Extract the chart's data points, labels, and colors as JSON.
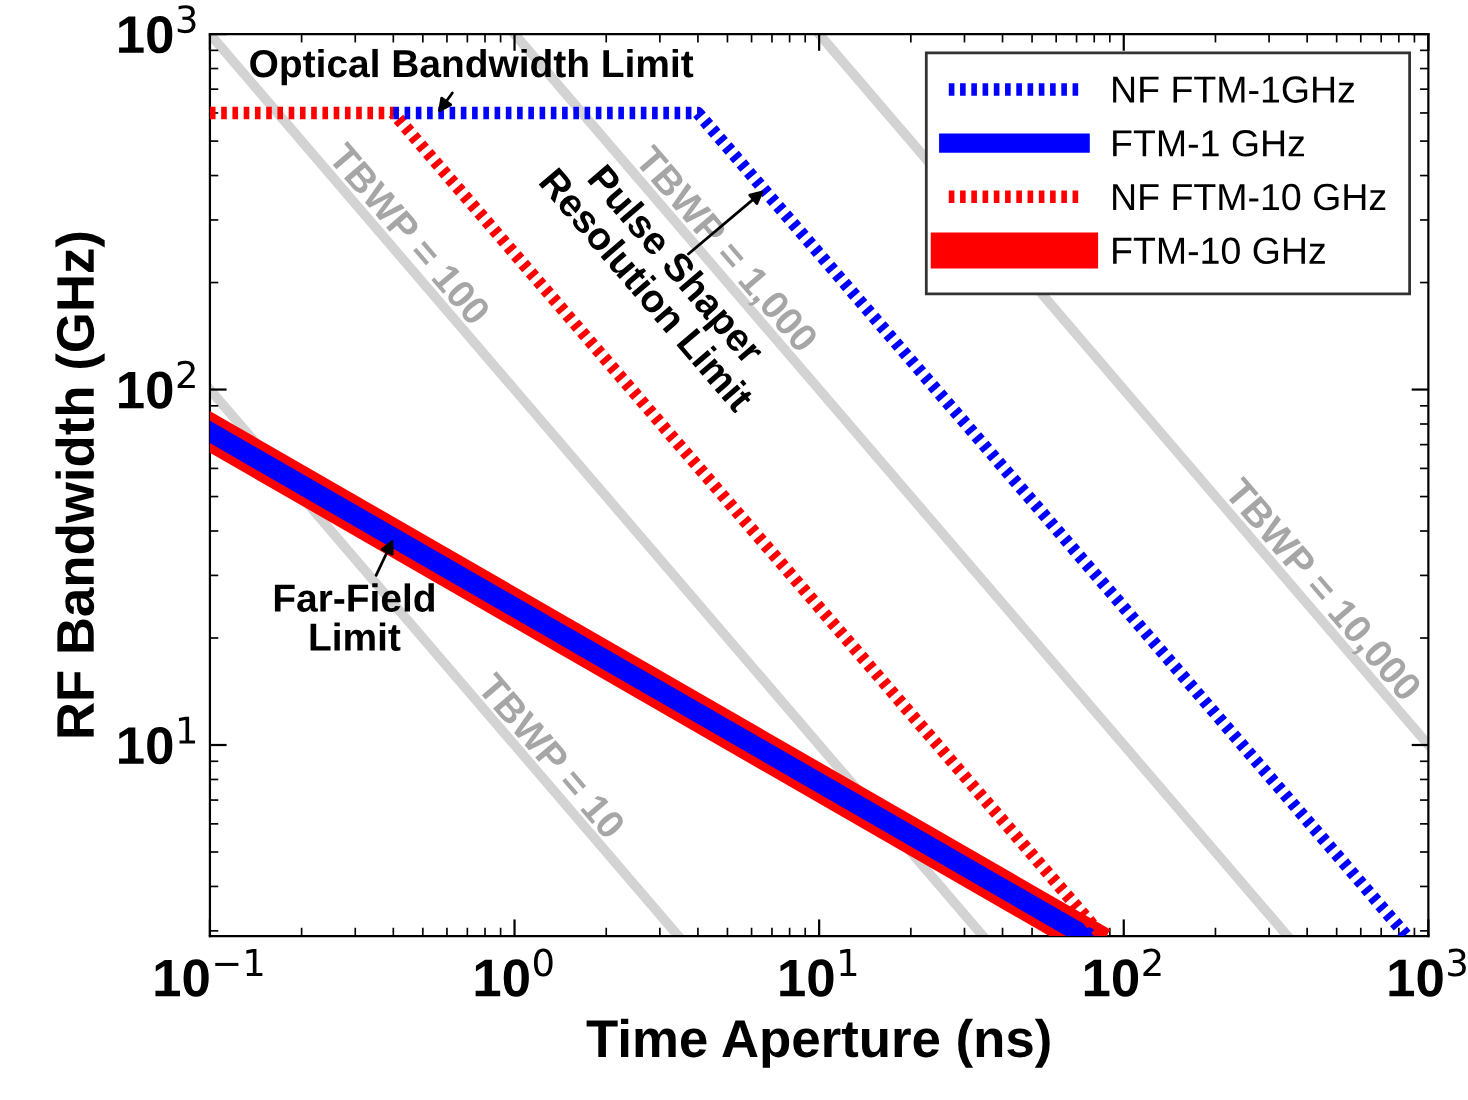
{
  "chart_data": {
    "type": "line",
    "xlabel": "Time Aperture (ns)",
    "ylabel": "RF Bandwidth (GHz)",
    "log": "xy",
    "xlim": [
      0.1,
      1000
    ],
    "ylim": [
      2.9,
      1000
    ],
    "xticks": [
      {
        "value": 0.1,
        "label": "10$^{−1}$"
      },
      {
        "value": 1,
        "label": "10$^{0}$"
      },
      {
        "value": 10,
        "label": "10$^{1}$"
      },
      {
        "value": 100,
        "label": "10$^{2}$"
      },
      {
        "value": 1000,
        "label": "10$^{3}$"
      }
    ],
    "yticks": [
      {
        "value": 10,
        "label": "10$^{1}$"
      },
      {
        "value": 100,
        "label": "10$^{2}$"
      },
      {
        "value": 1000,
        "label": "10$^{3}$"
      }
    ],
    "grid": false,
    "legend": "top right",
    "marker": "none",
    "series": [
      {
        "name": "NF FTM-1GHz",
        "color": "#0000ff",
        "line_style": "dotted",
        "x": [
          0.4,
          4,
          850
        ],
        "values": [
          600,
          600,
          2.9
        ]
      },
      {
        "name": "FTM-1 GHz",
        "color": "#0000ff",
        "line_style": "solid",
        "x": [
          0.1,
          75
        ],
        "values": [
          76,
          2.9
        ]
      },
      {
        "name": "NF FTM-10 GHz",
        "color": "#ff0000",
        "line_style": "dotted",
        "x": [
          0.1,
          0.4,
          85
        ],
        "values": [
          600,
          600,
          2.9
        ]
      },
      {
        "name": "FTM-10 GHz",
        "color": "#ff0000",
        "line_style": "solid",
        "x": [
          0.1,
          75
        ],
        "values": [
          76,
          2.9
        ]
      },
      {
        "color": "#d3d3d3",
        "line_style": "solid",
        "x": [
          0.1,
          3.45
        ],
        "values": [
          100,
          2.9
        ]
      },
      {
        "color": "#d3d3d3",
        "line_style": "solid",
        "x": [
          0.1,
          34.5
        ],
        "values": [
          1000,
          2.9
        ]
      },
      {
        "color": "#d3d3d3",
        "line_style": "solid",
        "x": [
          1,
          345
        ],
        "values": [
          1000,
          2.9
        ]
      },
      {
        "color": "#d3d3d3",
        "line_style": "solid",
        "x": [
          10,
          1000
        ],
        "values": [
          1000,
          10
        ]
      }
    ],
    "annotations": [
      {
        "text": "Optical Bandwidth Limit",
        "x": 0.56,
        "y": 600
      },
      {
        "text": "Pulse Shaper\nResolution Limit",
        "x": 6.6,
        "y": 364
      },
      {
        "text": "Far-Field\nLimit",
        "x": 0.4,
        "y": 38
      },
      {
        "text": "TBWP = 10",
        "x": 1.17,
        "y": 8.5
      },
      {
        "text": "TBWP = 100",
        "x": 0.4,
        "y": 250
      },
      {
        "text": "TBWP = 1,000",
        "x": 4.4,
        "y": 227
      },
      {
        "text": "TBWP = 10,000",
        "x": 400,
        "y": 25
      }
    ]
  }
}
